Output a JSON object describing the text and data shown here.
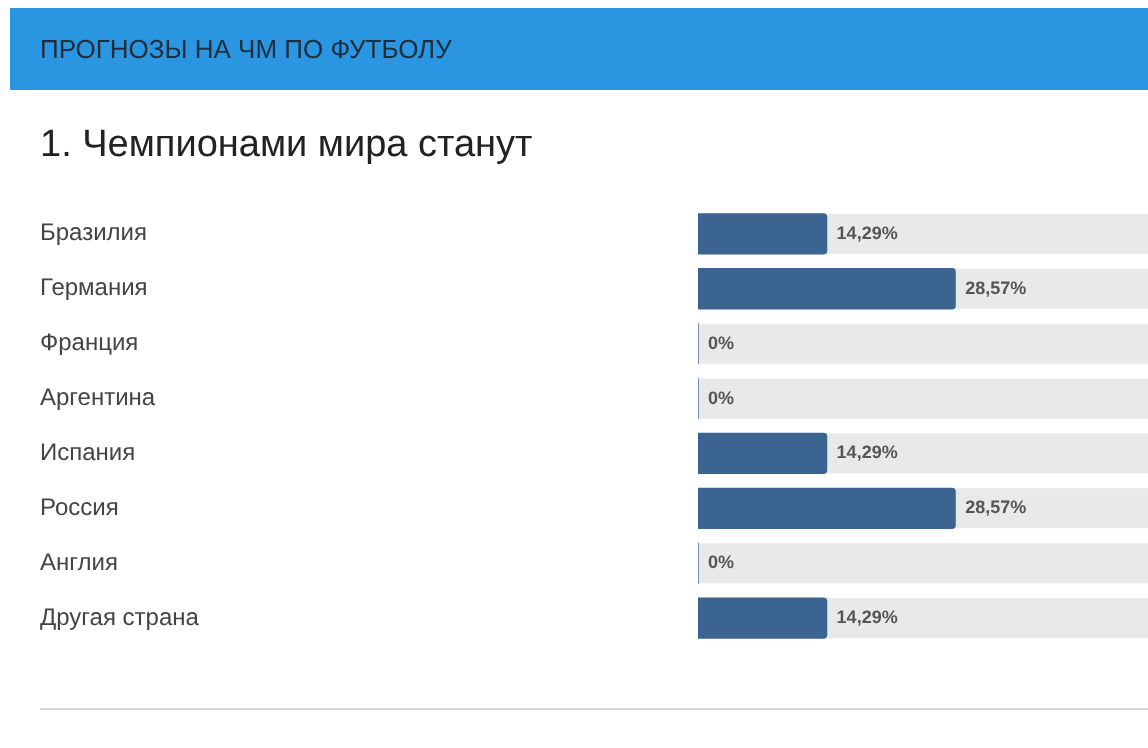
{
  "chart_data": {
    "type": "bar",
    "orientation": "horizontal",
    "title": "ПРОГНОЗЫ НА ЧМ ПО ФУТБОЛУ",
    "subtitle": "1. Чемпионами мира станут",
    "categories": [
      "Бразилия",
      "Германия",
      "Франция",
      "Аргентина",
      "Испания",
      "Россия",
      "Англия",
      "Другая страна"
    ],
    "values": [
      14.29,
      28.57,
      0,
      0,
      14.29,
      28.57,
      0,
      14.29
    ],
    "value_labels": [
      "14,29%",
      "28,57%",
      "0%",
      "0%",
      "14,29%",
      "28,57%",
      "0%",
      "14,29%"
    ],
    "color": "#3b6491",
    "grid": false,
    "legend": false
  }
}
